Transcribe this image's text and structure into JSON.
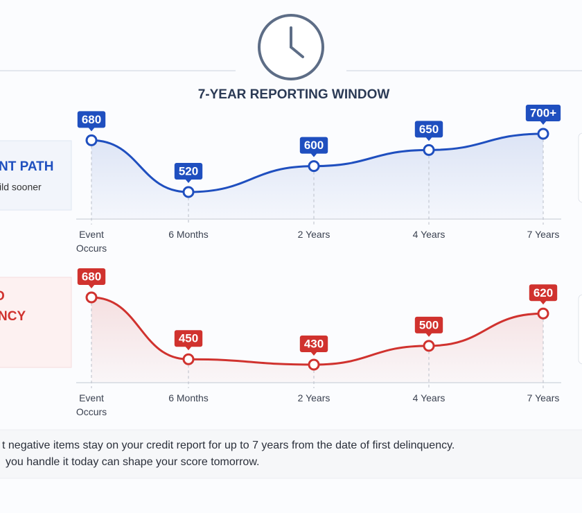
{
  "header": {
    "title": "7-YEAR REPORTING WINDOW"
  },
  "panels": [
    {
      "title": "NT PATH",
      "subtitle": "ild sooner"
    },
    {
      "lines": [
        "O",
        "NCY"
      ]
    }
  ],
  "chart_data": [
    {
      "type": "line",
      "categories": [
        "Event Occurs",
        "6 Months",
        "2 Years",
        "4 Years",
        "7 Years"
      ],
      "values": [
        680,
        520,
        600,
        650,
        700
      ],
      "value_labels": [
        "680",
        "520",
        "600",
        "650",
        "700+"
      ],
      "color": "#1f4fbf"
    },
    {
      "type": "line",
      "categories": [
        "Event Occurs",
        "6 Months",
        "2 Years",
        "4 Years",
        "7 Years"
      ],
      "values": [
        680,
        450,
        430,
        500,
        620
      ],
      "value_labels": [
        "680",
        "450",
        "430",
        "500",
        "620"
      ],
      "color": "#d0322e"
    }
  ],
  "footer": {
    "lines": [
      "t negative items stay on your credit report for up to 7 years from the date of first delinquency.",
      "you handle it today can shape your score tomorrow."
    ]
  }
}
